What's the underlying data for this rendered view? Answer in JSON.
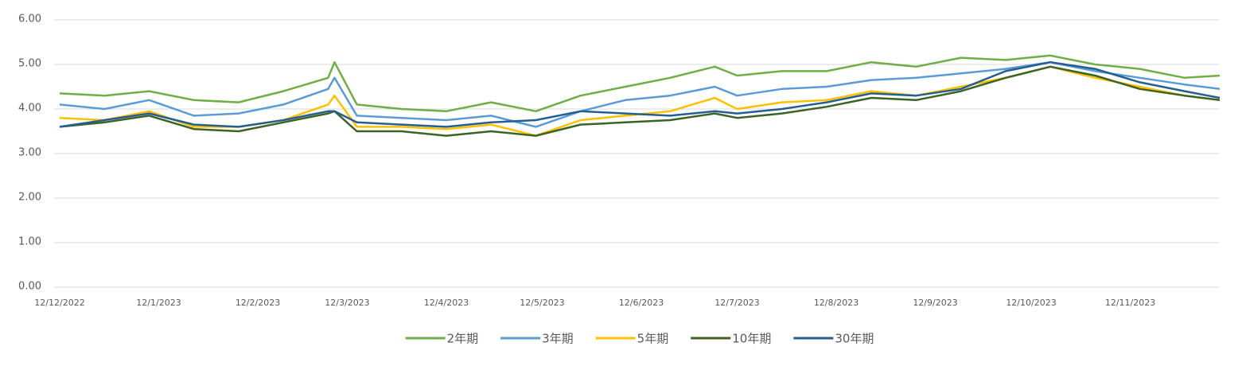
{
  "chart_data": {
    "type": "line",
    "x": [
      "12/12/2022",
      "26/12/2022",
      "9/1/2023",
      "23/1/2023",
      "6/2/2023",
      "20/2/2023",
      "6/3/2023",
      "8/3/2023",
      "15/3/2023",
      "29/3/2023",
      "12/4/2023",
      "26/4/2023",
      "10/5/2023",
      "24/5/2023",
      "7/6/2023",
      "21/6/2023",
      "5/7/2023",
      "12/7/2023",
      "26/7/2023",
      "9/8/2023",
      "23/8/2023",
      "6/9/2023",
      "20/9/2023",
      "4/10/2023",
      "18/10/2023",
      "1/11/2023",
      "15/11/2023",
      "29/11/2023",
      "10/12/2023"
    ],
    "series": [
      {
        "name": "2年期",
        "color": "#70ad47",
        "values": [
          4.35,
          4.3,
          4.4,
          4.2,
          4.15,
          4.4,
          4.7,
          5.05,
          4.1,
          4.0,
          3.95,
          4.15,
          3.95,
          4.3,
          4.5,
          4.7,
          4.95,
          4.75,
          4.85,
          4.85,
          5.05,
          4.95,
          5.15,
          5.1,
          5.2,
          5.0,
          4.9,
          4.7,
          4.75
        ]
      },
      {
        "name": "3年期",
        "color": "#5b9bd5",
        "values": [
          4.1,
          4.0,
          4.2,
          3.85,
          3.9,
          4.1,
          4.45,
          4.7,
          3.85,
          3.8,
          3.75,
          3.85,
          3.6,
          3.95,
          4.2,
          4.3,
          4.5,
          4.3,
          4.45,
          4.5,
          4.65,
          4.7,
          4.8,
          4.9,
          5.05,
          4.85,
          4.7,
          4.55,
          4.45
        ]
      },
      {
        "name": "5年期",
        "color": "#ffc000",
        "values": [
          3.8,
          3.75,
          3.95,
          3.6,
          3.6,
          3.75,
          4.1,
          4.3,
          3.6,
          3.6,
          3.55,
          3.65,
          3.4,
          3.75,
          3.85,
          3.95,
          4.25,
          4.0,
          4.15,
          4.2,
          4.4,
          4.3,
          4.5,
          4.7,
          4.95,
          4.7,
          4.5,
          4.3,
          4.2
        ]
      },
      {
        "name": "10年期",
        "color": "#3b6324",
        "values": [
          3.6,
          3.7,
          3.85,
          3.55,
          3.5,
          3.7,
          3.9,
          3.95,
          3.5,
          3.5,
          3.4,
          3.5,
          3.4,
          3.65,
          3.7,
          3.75,
          3.9,
          3.8,
          3.9,
          4.05,
          4.25,
          4.2,
          4.4,
          4.7,
          4.95,
          4.75,
          4.45,
          4.3,
          4.2
        ]
      },
      {
        "name": "30年期",
        "color": "#255e91",
        "values": [
          3.6,
          3.75,
          3.9,
          3.65,
          3.6,
          3.75,
          3.95,
          3.95,
          3.7,
          3.65,
          3.6,
          3.7,
          3.75,
          3.95,
          3.9,
          3.85,
          3.95,
          3.9,
          4.0,
          4.15,
          4.35,
          4.3,
          4.45,
          4.85,
          5.05,
          4.9,
          4.6,
          4.4,
          4.25
        ]
      }
    ],
    "xlim": [
      "12/12/2022",
      "10/12/2023"
    ],
    "xticks": [
      "12/12/2022",
      "12/1/2023",
      "12/2/2023",
      "12/3/2023",
      "12/4/2023",
      "12/5/2023",
      "12/6/2023",
      "12/7/2023",
      "12/8/2023",
      "12/9/2023",
      "12/10/2023",
      "12/11/2023"
    ],
    "ylim": [
      0,
      6
    ],
    "yticks": [
      {
        "value": 0,
        "label": "0.00"
      },
      {
        "value": 1,
        "label": "1.00"
      },
      {
        "value": 2,
        "label": "2.00"
      },
      {
        "value": 3,
        "label": "3.00"
      },
      {
        "value": 4,
        "label": "4.00"
      },
      {
        "value": 5,
        "label": "5.00"
      },
      {
        "value": 6,
        "label": "6.00"
      }
    ],
    "grid": true,
    "legend": "bottom"
  }
}
